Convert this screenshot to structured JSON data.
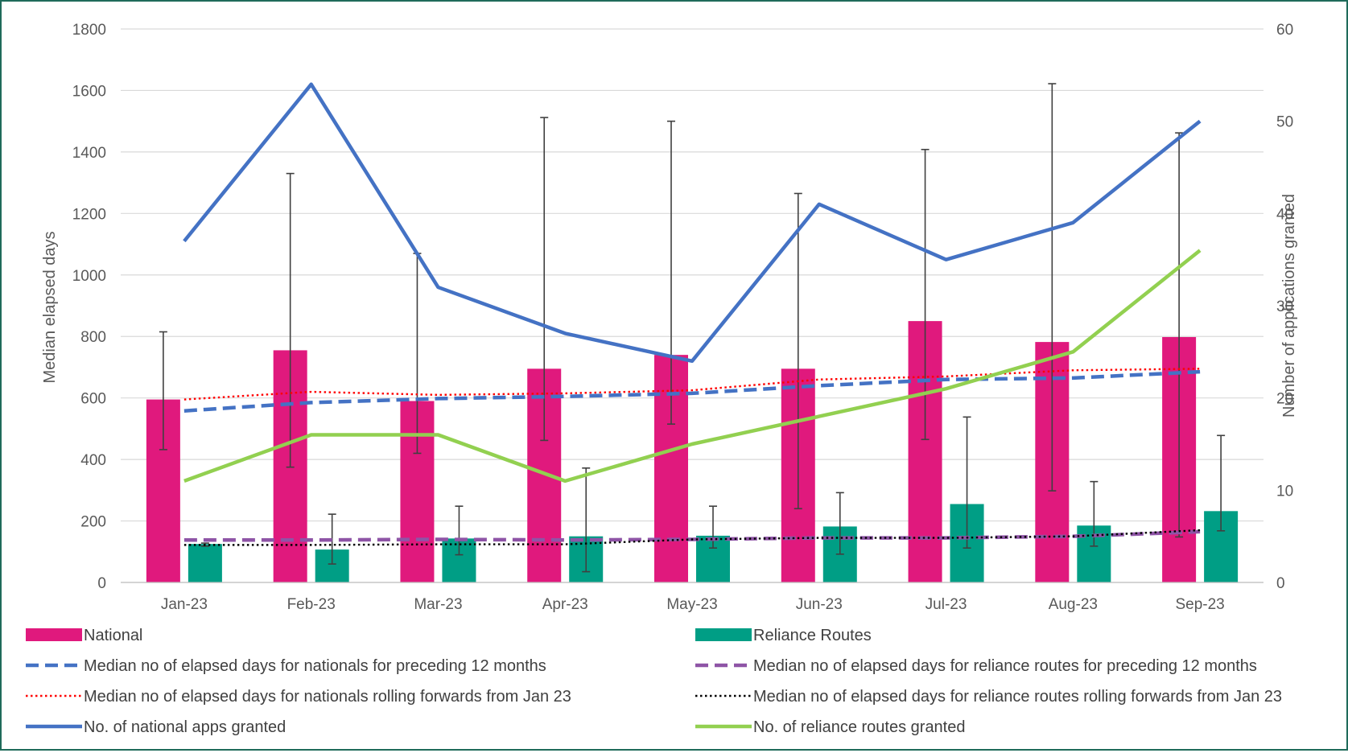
{
  "chart_data": {
    "type": "bar",
    "categories": [
      "Jan-23",
      "Feb-23",
      "Mar-23",
      "Apr-23",
      "May-23",
      "Jun-23",
      "Jul-23",
      "Aug-23",
      "Sep-23"
    ],
    "ylabel": "Median elapsed days",
    "y2label": "Number  of applications granted",
    "ylim": [
      0,
      1800
    ],
    "y2lim": [
      0,
      60
    ],
    "yticks": [
      0,
      200,
      400,
      600,
      800,
      1000,
      1200,
      1400,
      1600,
      1800
    ],
    "y2ticks": [
      0,
      10,
      20,
      30,
      40,
      50,
      60
    ],
    "grid": "horizontal",
    "legend_position": "bottom",
    "bar_series": [
      {
        "name": "National",
        "color": "#e0197d",
        "values": [
          595,
          755,
          590,
          695,
          740,
          695,
          850,
          782,
          798
        ],
        "error_low": [
          432,
          375,
          420,
          462,
          515,
          240,
          465,
          298,
          148
        ],
        "error_high": [
          815,
          1330,
          1070,
          1512,
          1500,
          1265,
          1408,
          1622,
          1462
        ]
      },
      {
        "name": "Reliance Routes",
        "color": "#009e85",
        "values": [
          125,
          107,
          143,
          150,
          152,
          182,
          255,
          185,
          232
        ],
        "error_low": [
          118,
          60,
          90,
          35,
          112,
          92,
          112,
          118,
          168
        ],
        "error_high": [
          128,
          222,
          248,
          372,
          248,
          292,
          538,
          328,
          478
        ]
      }
    ],
    "line_series": [
      {
        "name": "Median no of elapsed days for nationals for preceding 12 months",
        "axis": "left",
        "color": "#4472c4",
        "style": "dashed",
        "values": [
          558,
          585,
          598,
          605,
          615,
          640,
          660,
          665,
          685
        ]
      },
      {
        "name": "Median no of elapsed days for nationals rolling forwards from Jan 23",
        "axis": "left",
        "color": "#ff0000",
        "style": "dotted",
        "values": [
          595,
          620,
          610,
          615,
          625,
          660,
          670,
          690,
          695
        ]
      },
      {
        "name": "Median no of elapsed days for reliance routes for preceding 12 months",
        "axis": "left",
        "color": "#8e54a6",
        "style": "dashed",
        "values": [
          138,
          138,
          140,
          138,
          140,
          145,
          145,
          150,
          165
        ]
      },
      {
        "name": "Median no of elapsed days for reliance routes rolling forwards from Jan 23",
        "axis": "left",
        "color": "#000000",
        "style": "dotted",
        "values": [
          122,
          122,
          124,
          124,
          140,
          145,
          145,
          150,
          170
        ]
      },
      {
        "name": "No. of national apps granted",
        "axis": "right",
        "color": "#4472c4",
        "style": "solid",
        "values": [
          37,
          54,
          32,
          27,
          24,
          41,
          35,
          39,
          50
        ]
      },
      {
        "name": "No. of reliance routes granted",
        "axis": "right",
        "color": "#92d050",
        "style": "solid",
        "values": [
          11,
          16,
          16,
          11,
          15,
          18,
          21,
          25,
          36
        ]
      }
    ],
    "legend": [
      {
        "label": "National",
        "kind": "bar",
        "color": "#e0197d"
      },
      {
        "label": "Reliance Routes",
        "kind": "bar",
        "color": "#009e85"
      },
      {
        "label": "Median no of elapsed days for nationals for preceding 12 months",
        "kind": "dashed",
        "color": "#4472c4"
      },
      {
        "label": "Median no of elapsed days for reliance routes for preceding 12 months",
        "kind": "dashed",
        "color": "#8e54a6"
      },
      {
        "label": "Median no of elapsed days for nationals rolling forwards from Jan 23",
        "kind": "dotted",
        "color": "#ff0000"
      },
      {
        "label": "Median no of elapsed days for reliance routes rolling forwards from Jan 23",
        "kind": "dotted",
        "color": "#000000"
      },
      {
        "label": "No. of national apps granted",
        "kind": "solid",
        "color": "#4472c4"
      },
      {
        "label": "No. of reliance routes granted",
        "kind": "solid",
        "color": "#92d050"
      }
    ]
  }
}
